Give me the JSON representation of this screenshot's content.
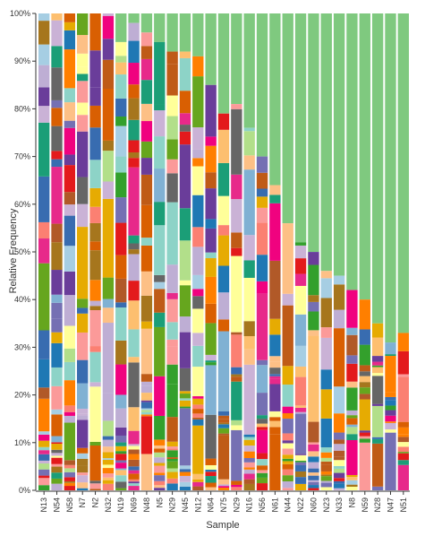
{
  "chart_data": {
    "type": "bar",
    "stacked": true,
    "normalized": true,
    "xlabel": "Sample",
    "ylabel": "Relative Frequency",
    "y_ticks": [
      "0%",
      "10%",
      "20%",
      "30%",
      "40%",
      "50%",
      "60%",
      "70%",
      "80%",
      "90%",
      "100%"
    ],
    "ylim": [
      0,
      100
    ],
    "grid": false,
    "categories": [
      "N13",
      "N54",
      "N58",
      "N7",
      "N2",
      "N32",
      "N19",
      "N69",
      "N48",
      "N5",
      "N29",
      "N45",
      "N12",
      "N64",
      "N75",
      "N29",
      "N16",
      "N56",
      "N61",
      "N44",
      "N22",
      "N60",
      "N23",
      "N33",
      "N8",
      "N59",
      "N28",
      "N47",
      "N51"
    ],
    "dominant_series_color": "#7fc97f",
    "dominant_series_values": [
      0,
      0,
      0,
      0,
      0,
      0,
      6,
      2,
      4,
      6,
      8,
      8,
      9,
      15,
      21,
      19,
      24,
      30,
      36,
      44,
      48,
      50,
      54,
      55,
      58,
      60,
      65,
      69,
      67
    ],
    "palette": [
      "#7fc97f",
      "#beaed4",
      "#fdc086",
      "#ffff99",
      "#386cb0",
      "#f0027f",
      "#bf5b17",
      "#666666",
      "#1b9e77",
      "#d95f02",
      "#7570b3",
      "#e7298a",
      "#66a61e",
      "#e6ab02",
      "#a6761d",
      "#a6cee3",
      "#1f78b4",
      "#b2df8a",
      "#33a02c",
      "#fb9a99",
      "#e31a1c",
      "#fdbf6f",
      "#ff7f00",
      "#cab2d6",
      "#6a3d9a",
      "#b15928",
      "#8dd3c7",
      "#fb8072",
      "#80b1d3"
    ]
  }
}
